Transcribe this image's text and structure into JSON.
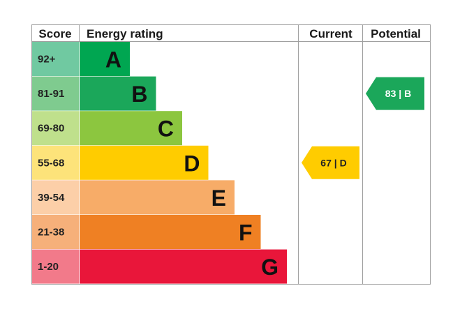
{
  "chart_data": {
    "type": "table",
    "columns": {
      "score": "Score",
      "rating": "Energy rating",
      "current": "Current",
      "potential": "Potential"
    },
    "bands": [
      {
        "score": "92+",
        "letter": "A",
        "color": "#00a651",
        "score_bg": "#70c9a1"
      },
      {
        "score": "81-91",
        "letter": "B",
        "color": "#1ba75a",
        "score_bg": "#7fcb8f"
      },
      {
        "score": "69-80",
        "letter": "C",
        "color": "#8cc63f",
        "score_bg": "#bfe08c"
      },
      {
        "score": "55-68",
        "letter": "D",
        "color": "#ffcc00",
        "score_bg": "#fde37a"
      },
      {
        "score": "39-54",
        "letter": "E",
        "color": "#f7ac68",
        "score_bg": "#fccfa8"
      },
      {
        "score": "21-38",
        "letter": "F",
        "color": "#ef8023",
        "score_bg": "#f6b07a"
      },
      {
        "score": "1-20",
        "letter": "G",
        "color": "#e9163a",
        "score_bg": "#f27a8a"
      }
    ],
    "current": {
      "value": 67,
      "band": "D",
      "label": "67 | D",
      "color": "#ffcc00",
      "text_color": "#222222"
    },
    "potential": {
      "value": 83,
      "band": "B",
      "label": "83 | B",
      "color": "#1ba75a",
      "text_color": "#ffffff"
    }
  }
}
